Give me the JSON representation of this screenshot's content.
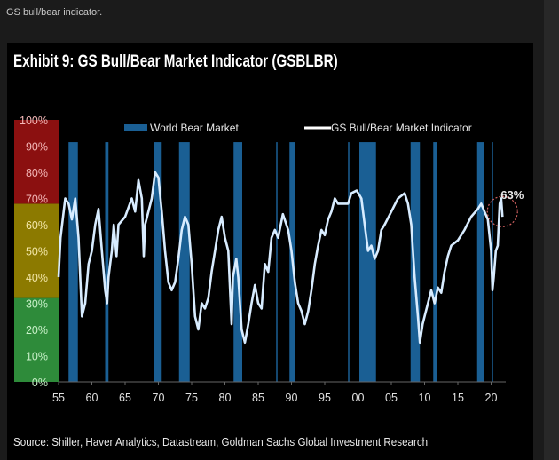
{
  "caption": "GS bull/bear indicator.",
  "title": "Exhibit 9: GS Bull/Bear Market Indicator (GSBLBR)",
  "source": "Source: Shiller, Haver Analytics, Datastream, Goldman Sachs Global Investment Research",
  "chart_data": {
    "type": "line",
    "title": "Exhibit 9: GS Bull/Bear Market Indicator (GSBLBR)",
    "xlabel": "",
    "ylabel": "",
    "xlim": [
      1955,
      2022
    ],
    "ylim": [
      0,
      100
    ],
    "grid": false,
    "legend": [
      "World Bear Market",
      "GS Bull/Bear Market Indicator"
    ],
    "legend_position": "top",
    "x_ticks": [
      {
        "v": 1955,
        "l": "55"
      },
      {
        "v": 1960,
        "l": "60"
      },
      {
        "v": 1965,
        "l": "65"
      },
      {
        "v": 1970,
        "l": "70"
      },
      {
        "v": 1975,
        "l": "75"
      },
      {
        "v": 1980,
        "l": "80"
      },
      {
        "v": 1985,
        "l": "85"
      },
      {
        "v": 1990,
        "l": "90"
      },
      {
        "v": 1995,
        "l": "95"
      },
      {
        "v": 2000,
        "l": "00"
      },
      {
        "v": 2005,
        "l": "05"
      },
      {
        "v": 2010,
        "l": "10"
      },
      {
        "v": 2015,
        "l": "15"
      },
      {
        "v": 2020,
        "l": "20"
      }
    ],
    "y_ticks": [
      {
        "v": 0,
        "l": "0%"
      },
      {
        "v": 10,
        "l": "10%"
      },
      {
        "v": 20,
        "l": "20%"
      },
      {
        "v": 30,
        "l": "30%"
      },
      {
        "v": 40,
        "l": "40%"
      },
      {
        "v": 50,
        "l": "50%"
      },
      {
        "v": 60,
        "l": "60%"
      },
      {
        "v": 70,
        "l": "70%"
      },
      {
        "v": 80,
        "l": "80%"
      },
      {
        "v": 90,
        "l": "90%"
      },
      {
        "v": 100,
        "l": "100%"
      }
    ],
    "zones": [
      {
        "from": 0,
        "to": 32,
        "color": "#2e8b3a",
        "label_color": "#c8f0c8"
      },
      {
        "from": 32,
        "to": 68,
        "color": "#8c7a00",
        "label_color": "#f3e7a8"
      },
      {
        "from": 68,
        "to": 100,
        "color": "#8b1010",
        "label_color": "#f4b8b8"
      }
    ],
    "bear_markets": [
      [
        1956.5,
        1957.9
      ],
      [
        1962.0,
        1962.5
      ],
      [
        1969.4,
        1970.5
      ],
      [
        1973.1,
        1974.7
      ],
      [
        1981.3,
        1982.6
      ],
      [
        1987.7,
        1987.9
      ],
      [
        1989.7,
        1990.5
      ],
      [
        1998.5,
        1998.7
      ],
      [
        2000.2,
        2002.7
      ],
      [
        2007.9,
        2009.3
      ],
      [
        2011.3,
        2011.8
      ],
      [
        2017.9,
        2019.0
      ],
      [
        2020.1,
        2020.3
      ]
    ],
    "bear_color": "#1a5f94",
    "line_color": "#d8ecff",
    "annotation": {
      "text": "63%",
      "x": 2021.7,
      "y": 63
    },
    "series": [
      {
        "name": "GS Bull/Bear Market Indicator",
        "x": [
          1955,
          1955.3,
          1956,
          1956.5,
          1957,
          1957.5,
          1958,
          1958.5,
          1959,
          1959.5,
          1960,
          1960.5,
          1961,
          1961.5,
          1962,
          1962.3,
          1962.5,
          1963,
          1963.3,
          1963.7,
          1964,
          1965,
          1966,
          1966.5,
          1967,
          1967.5,
          1967.8,
          1968,
          1969,
          1969.5,
          1970,
          1970.5,
          1971,
          1971.5,
          1972,
          1972.5,
          1973,
          1973.5,
          1974,
          1974.5,
          1975,
          1975.5,
          1976,
          1976.5,
          1977,
          1977.5,
          1978,
          1978.5,
          1979,
          1979.5,
          1980,
          1980.5,
          1981,
          1981.2,
          1981.7,
          1982,
          1982.5,
          1983,
          1983.5,
          1984,
          1984.5,
          1985,
          1985.5,
          1986,
          1986.5,
          1987,
          1987.5,
          1988,
          1988.7,
          1989.5,
          1990,
          1990.5,
          1991,
          1991.5,
          1992,
          1992.5,
          1993,
          1993.5,
          1994,
          1994.5,
          1995,
          1995.5,
          1996,
          1996.5,
          1997,
          1998,
          1998.5,
          1999,
          1999.8,
          2000.5,
          2001,
          2001.5,
          2002,
          2002.5,
          2003,
          2003.5,
          2004,
          2005,
          2006,
          2007,
          2007.5,
          2008,
          2008.5,
          2009,
          2009.3,
          2009.7,
          2010,
          2010.5,
          2011,
          2011.5,
          2012,
          2012.5,
          2013,
          2013.5,
          2014,
          2015,
          2016,
          2017,
          2018,
          2018.5,
          2019,
          2019.5,
          2020,
          2020.2,
          2020.4,
          2020.7,
          2021,
          2021.3,
          2021.5,
          2021.7
        ],
        "y": [
          40,
          55,
          70,
          68,
          62,
          70,
          55,
          25,
          30,
          45,
          50,
          60,
          66,
          50,
          35,
          30,
          40,
          50,
          60,
          48,
          60,
          63,
          70,
          65,
          77,
          70,
          48,
          60,
          70,
          80,
          78,
          65,
          50,
          38,
          35,
          38,
          47,
          58,
          63,
          60,
          45,
          25,
          20,
          30,
          28,
          32,
          42,
          50,
          58,
          63,
          55,
          50,
          22,
          40,
          47,
          40,
          20,
          15,
          22,
          30,
          37,
          30,
          28,
          45,
          42,
          55,
          58,
          55,
          64,
          58,
          50,
          38,
          30,
          27,
          22,
          27,
          35,
          45,
          52,
          58,
          56,
          62,
          65,
          70,
          68,
          68,
          68,
          72,
          73,
          70,
          60,
          50,
          52,
          47,
          50,
          58,
          60,
          65,
          70,
          72,
          68,
          60,
          40,
          25,
          15,
          22,
          25,
          30,
          35,
          30,
          36,
          34,
          42,
          48,
          52,
          54,
          58,
          63,
          66,
          68,
          65,
          62,
          50,
          35,
          40,
          50,
          52,
          68,
          70,
          63
        ]
      }
    ]
  }
}
